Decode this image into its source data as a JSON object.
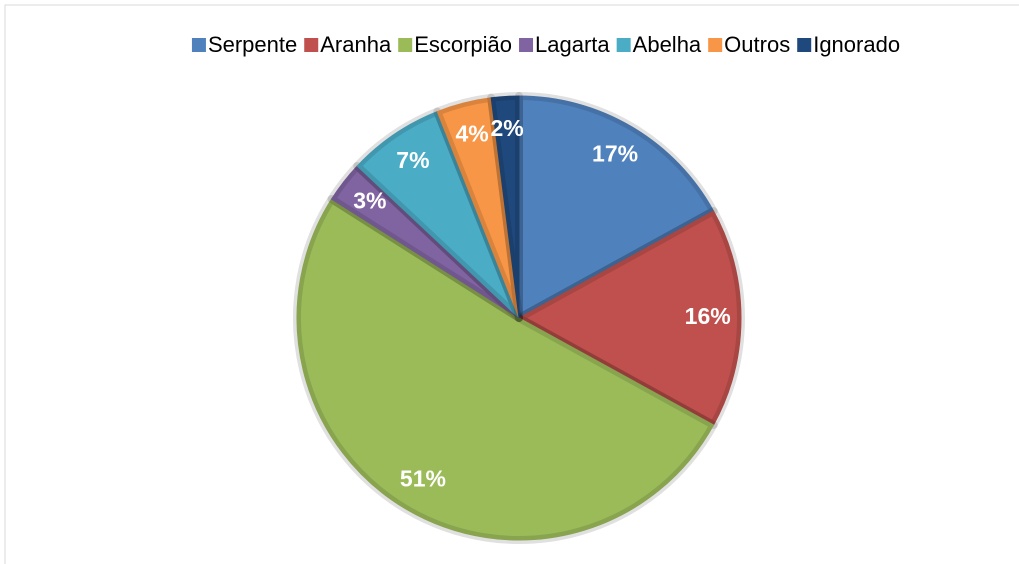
{
  "chart_data": {
    "type": "pie",
    "categories": [
      "Serpente",
      "Aranha",
      "Escorpião",
      "Lagarta",
      "Abelha",
      "Outros",
      "Ignorado"
    ],
    "values": [
      17,
      16,
      51,
      3,
      7,
      4,
      2
    ],
    "value_labels": [
      "17%",
      "16%",
      "51%",
      "3%",
      "7%",
      "4%",
      "2%"
    ],
    "colors": [
      "#4f81bd",
      "#c0504d",
      "#9bbb59",
      "#8064a2",
      "#4bacc6",
      "#f79646",
      "#1f497d"
    ],
    "legend": "top"
  }
}
